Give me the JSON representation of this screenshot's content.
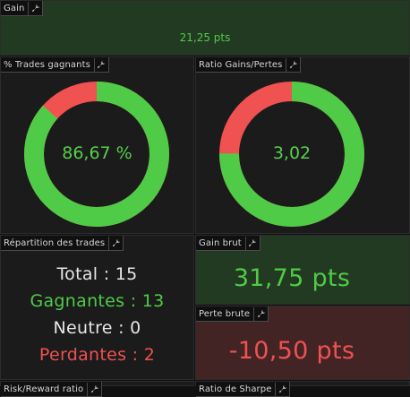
{
  "gain": {
    "title": "Gain",
    "value": "21,25 pts"
  },
  "trades_gagnants": {
    "title": "% Trades gagnants",
    "center": "86,67 %",
    "fraction": 0.8667
  },
  "ratio": {
    "title": "Ratio Gains/Pertes",
    "center": "3,02",
    "fraction": 0.7513
  },
  "repartition": {
    "title": "Répartition des trades",
    "total": "Total : 15",
    "gagnantes": "Gagnantes : 13",
    "neutre": "Neutre : 0",
    "perdantes": "Perdantes : 2"
  },
  "gain_brut": {
    "title": "Gain brut",
    "value": "31,75 pts"
  },
  "perte_brute": {
    "title": "Perte brute",
    "value": "-10,50 pts"
  },
  "risk_reward": {
    "title": "Risk/Reward ratio"
  },
  "sharpe": {
    "title": "Ratio de Sharpe"
  },
  "colors": {
    "green": "#4fcb47",
    "red": "#f05151",
    "white": "#e6e6e6"
  },
  "icons": {
    "settings": "wrench-icon"
  }
}
